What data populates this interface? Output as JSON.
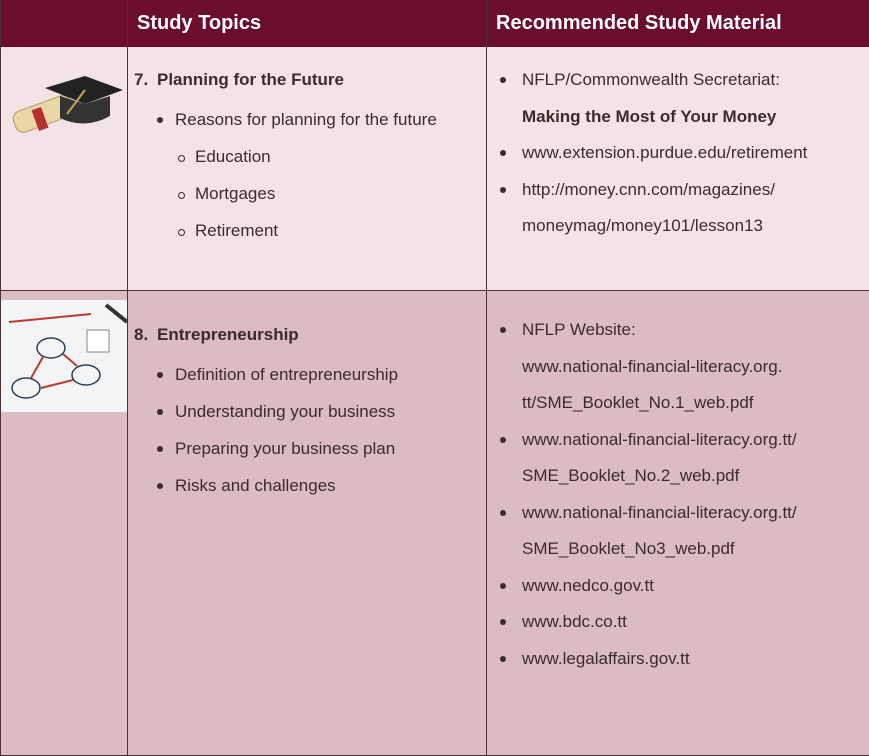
{
  "header": {
    "columns": [
      "Study Topics",
      "Recommended Study Material"
    ]
  },
  "rows": [
    {
      "number": "7.",
      "title": "Planning for the Future",
      "topics": [
        {
          "text": "Reasons for planning for the future",
          "subtopics": [
            "Education",
            "Mortgages",
            "Retirement"
          ]
        }
      ],
      "materials": [
        {
          "lines": [
            "NFLP/Commonwealth Secretariat:"
          ],
          "bold": "Making the Most of Your Money"
        },
        {
          "lines": [
            "www.extension.purdue.edu/retirement"
          ]
        },
        {
          "lines": [
            "http://money.cnn.com/magazines/",
            "moneymag/money101/lesson13"
          ]
        }
      ]
    },
    {
      "number": "8.",
      "title": "Entrepreneurship",
      "topics": [
        {
          "text": "Definition of entrepreneurship"
        },
        {
          "text": "Understanding your business"
        },
        {
          "text": "Preparing your business plan"
        },
        {
          "text": "Risks and challenges"
        }
      ],
      "materials": [
        {
          "lines": [
            "NFLP Website:",
            "www.national-financial-literacy.org.",
            "tt/SME_Booklet_No.1_web.pdf"
          ]
        },
        {
          "lines": [
            "www.national-financial-literacy.org.tt/",
            "SME_Booklet_No.2_web.pdf"
          ]
        },
        {
          "lines": [
            "www.national-financial-literacy.org.tt/",
            "SME_Booklet_No3_web.pdf"
          ]
        },
        {
          "lines": [
            "www.nedco.gov.tt"
          ]
        },
        {
          "lines": [
            "www.bdc.co.tt"
          ]
        },
        {
          "lines": [
            "www.legalaffairs.gov.tt"
          ]
        }
      ]
    }
  ]
}
